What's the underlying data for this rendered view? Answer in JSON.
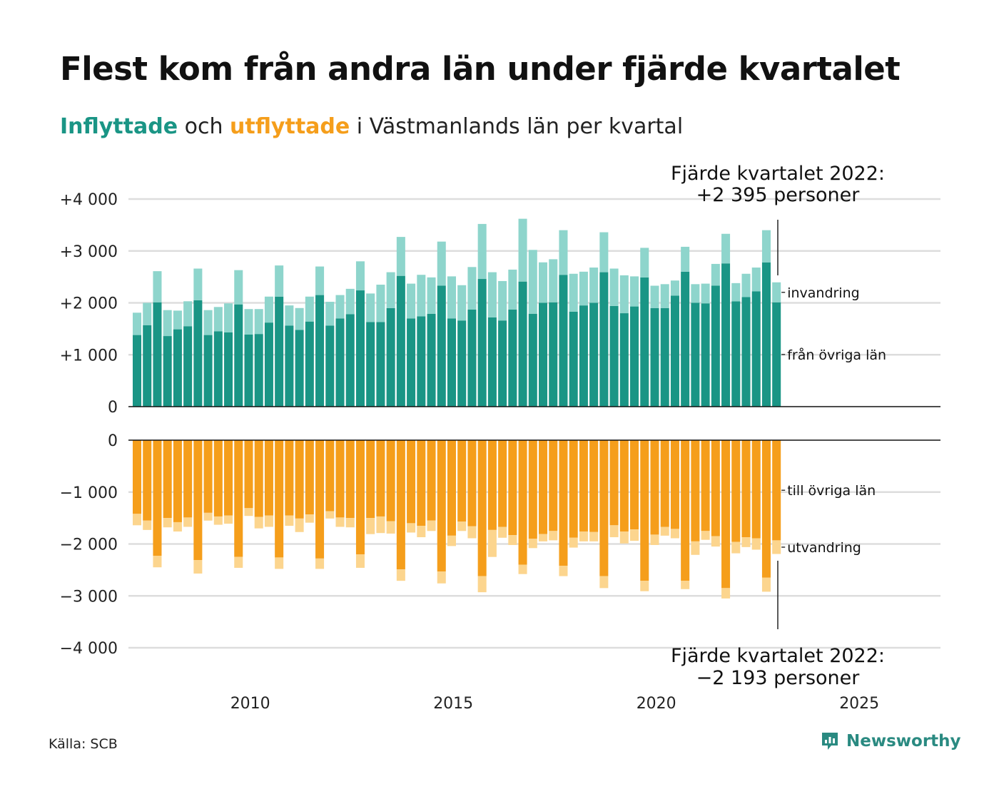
{
  "title": "Flest kom från andra län under fjärde kvartalet",
  "subtitle": {
    "inflow": "Inflyttade",
    "and": " och ",
    "outflow": "utflyttade",
    "rest": " i Västmanlands län per kvartal"
  },
  "source": "Källa: SCB",
  "brand": "Newsworthy",
  "colors": {
    "in_domestic": "#1a9585",
    "in_immigration": "#8ed5cc",
    "out_domestic": "#f59e1b",
    "out_emigration": "#fcd58e",
    "grid": "#dddddd",
    "baseline": "#111111"
  },
  "chart_data": [
    {
      "type": "bar",
      "stacked": true,
      "title": "Inflyttade",
      "x_start": "2007 Q1",
      "x_end": "2022 Q4",
      "xlim": [
        2007,
        2027
      ],
      "x_ticks": [
        "2010",
        "2015",
        "2020",
        "2025"
      ],
      "ylim": [
        0,
        4000
      ],
      "y_ticks": [
        "0",
        "+1 000",
        "+2 000",
        "+3 000",
        "+4 000"
      ],
      "grid": true,
      "series": [
        {
          "name": "från övriga län",
          "values": [
            1380,
            1570,
            2010,
            1360,
            1490,
            1550,
            2050,
            1380,
            1450,
            1430,
            1970,
            1390,
            1400,
            1620,
            2120,
            1560,
            1480,
            1640,
            2150,
            1560,
            1700,
            1780,
            2240,
            1630,
            1630,
            1900,
            2520,
            1700,
            1740,
            1790,
            2330,
            1700,
            1660,
            1870,
            2460,
            1720,
            1660,
            1870,
            2410,
            1790,
            2000,
            2010,
            2540,
            1830,
            1950,
            2000,
            2590,
            1940,
            1800,
            1930,
            2490,
            1900,
            1900,
            2140,
            2600,
            2000,
            1990,
            2330,
            2760,
            2030,
            2110,
            2220,
            2780,
            2010
          ]
        },
        {
          "name": "invandring",
          "values": [
            430,
            430,
            600,
            500,
            360,
            480,
            610,
            480,
            470,
            560,
            660,
            490,
            480,
            500,
            600,
            390,
            420,
            480,
            550,
            460,
            450,
            490,
            560,
            550,
            720,
            690,
            750,
            670,
            800,
            700,
            850,
            810,
            680,
            820,
            1060,
            870,
            760,
            770,
            1210,
            1230,
            780,
            830,
            860,
            730,
            650,
            680,
            770,
            720,
            730,
            580,
            570,
            430,
            460,
            290,
            480,
            360,
            380,
            420,
            570,
            350,
            450,
            460,
            620,
            385
          ]
        }
      ],
      "annotation": {
        "line1": "Fjärde kvartalet 2022:",
        "line2": "+2 395 personer"
      }
    },
    {
      "type": "bar",
      "stacked": true,
      "title": "Utflyttade",
      "x_start": "2007 Q1",
      "x_end": "2022 Q4",
      "xlim": [
        2007,
        2027
      ],
      "ylim": [
        -4000,
        0
      ],
      "y_ticks": [
        "0",
        "−1 000",
        "−2 000",
        "−3 000",
        "−4 000"
      ],
      "grid": true,
      "series": [
        {
          "name": "till övriga län",
          "values": [
            -1420,
            -1550,
            -2230,
            -1500,
            -1580,
            -1490,
            -2310,
            -1400,
            -1470,
            -1450,
            -2250,
            -1310,
            -1480,
            -1450,
            -2260,
            -1450,
            -1510,
            -1430,
            -2280,
            -1370,
            -1490,
            -1500,
            -2200,
            -1500,
            -1470,
            -1560,
            -2490,
            -1600,
            -1650,
            -1550,
            -2530,
            -1840,
            -1570,
            -1660,
            -2620,
            -1730,
            -1670,
            -1830,
            -2400,
            -1900,
            -1810,
            -1750,
            -2420,
            -1880,
            -1760,
            -1770,
            -2620,
            -1640,
            -1760,
            -1720,
            -2710,
            -1820,
            -1670,
            -1710,
            -2710,
            -1950,
            -1750,
            -1850,
            -2850,
            -1960,
            -1870,
            -1890,
            -2650,
            -1930
          ]
        },
        {
          "name": "utvandring",
          "values": [
            -220,
            -180,
            -220,
            -180,
            -180,
            -180,
            -260,
            -150,
            -160,
            -160,
            -210,
            -150,
            -220,
            -220,
            -220,
            -200,
            -260,
            -160,
            -200,
            -140,
            -180,
            -180,
            -260,
            -310,
            -320,
            -240,
            -220,
            -180,
            -220,
            -200,
            -230,
            -200,
            -180,
            -230,
            -310,
            -520,
            -210,
            -190,
            -180,
            -180,
            -140,
            -180,
            -200,
            -190,
            -190,
            -180,
            -230,
            -230,
            -230,
            -220,
            -200,
            -200,
            -170,
            -180,
            -160,
            -260,
            -170,
            -200,
            -200,
            -220,
            -190,
            -220,
            -270,
            -263
          ]
        }
      ],
      "annotation": {
        "line1": "Fjärde kvartalet 2022:",
        "line2": "−2 193 personer"
      }
    }
  ]
}
